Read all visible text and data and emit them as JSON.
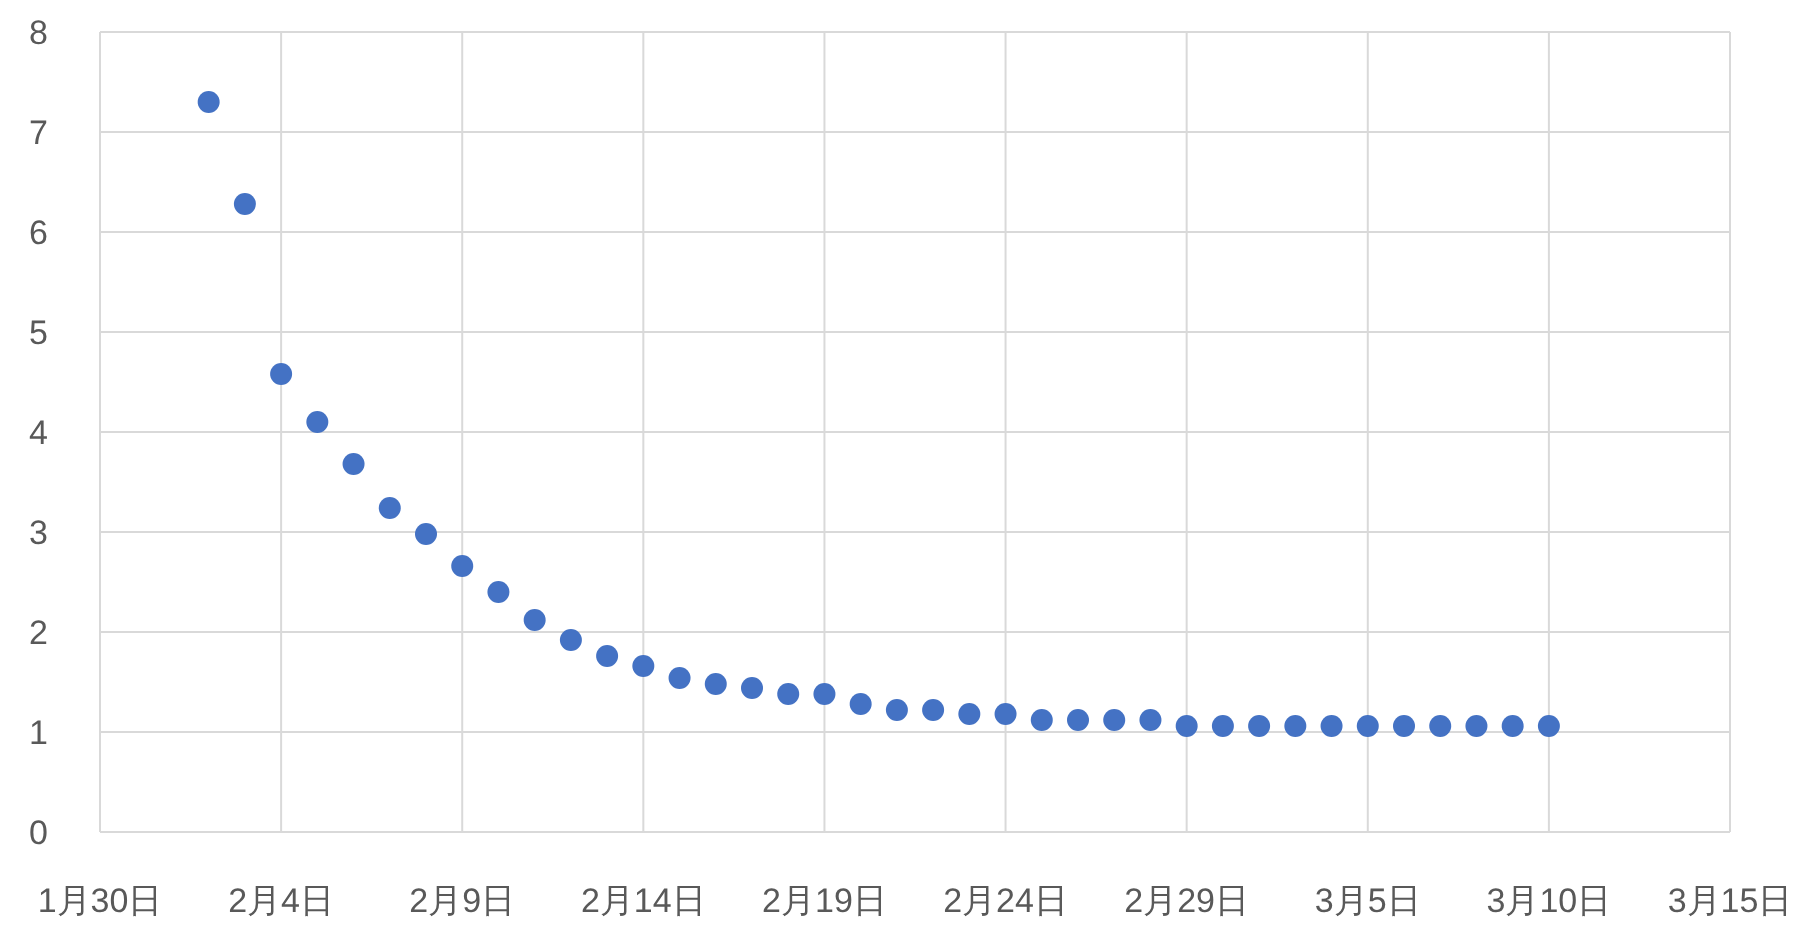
{
  "chart_data": {
    "type": "scatter",
    "x": [
      "--02-02",
      "--02-03",
      "--02-04",
      "--02-05",
      "--02-06",
      "--02-07",
      "--02-08",
      "--02-09",
      "--02-10",
      "--02-11",
      "--02-12",
      "--02-13",
      "--02-14",
      "--02-15",
      "--02-16",
      "--02-17",
      "--02-18",
      "--02-19",
      "--02-20",
      "--02-21",
      "--02-22",
      "--02-23",
      "--02-24",
      "--02-25",
      "--02-26",
      "--02-27",
      "--02-28",
      "--02-29",
      "--03-01",
      "--03-02",
      "--03-03",
      "--03-04",
      "--03-05",
      "--03-06",
      "--03-07",
      "--03-08",
      "--03-09",
      "--03-10"
    ],
    "values": [
      7.3,
      6.28,
      4.58,
      4.1,
      3.68,
      3.24,
      2.98,
      2.66,
      2.4,
      2.12,
      1.92,
      1.76,
      1.66,
      1.54,
      1.48,
      1.44,
      1.38,
      1.38,
      1.28,
      1.22,
      1.22,
      1.18,
      1.18,
      1.12,
      1.12,
      1.12,
      1.12,
      1.06,
      1.06,
      1.06,
      1.06,
      1.06,
      1.06,
      1.06,
      1.06,
      1.06,
      1.06,
      1.06
    ],
    "color": "#4472c4",
    "xlim": [
      "--01-30",
      "--03-15"
    ],
    "xticks": [
      {
        "value": "--01-30",
        "label": "1月30日"
      },
      {
        "value": "--02-04",
        "label": "2月4日"
      },
      {
        "value": "--02-09",
        "label": "2月9日"
      },
      {
        "value": "--02-14",
        "label": "2月14日"
      },
      {
        "value": "--02-19",
        "label": "2月19日"
      },
      {
        "value": "--02-24",
        "label": "2月24日"
      },
      {
        "value": "--02-29",
        "label": "2月29日"
      },
      {
        "value": "--03-05",
        "label": "3月5日"
      },
      {
        "value": "--03-10",
        "label": "3月10日"
      },
      {
        "value": "--03-15",
        "label": "3月15日"
      }
    ],
    "ylim": [
      0,
      8
    ],
    "yticks": [
      0,
      1,
      2,
      3,
      4,
      5,
      6,
      7,
      8
    ],
    "grid": true,
    "marker": "circle"
  }
}
